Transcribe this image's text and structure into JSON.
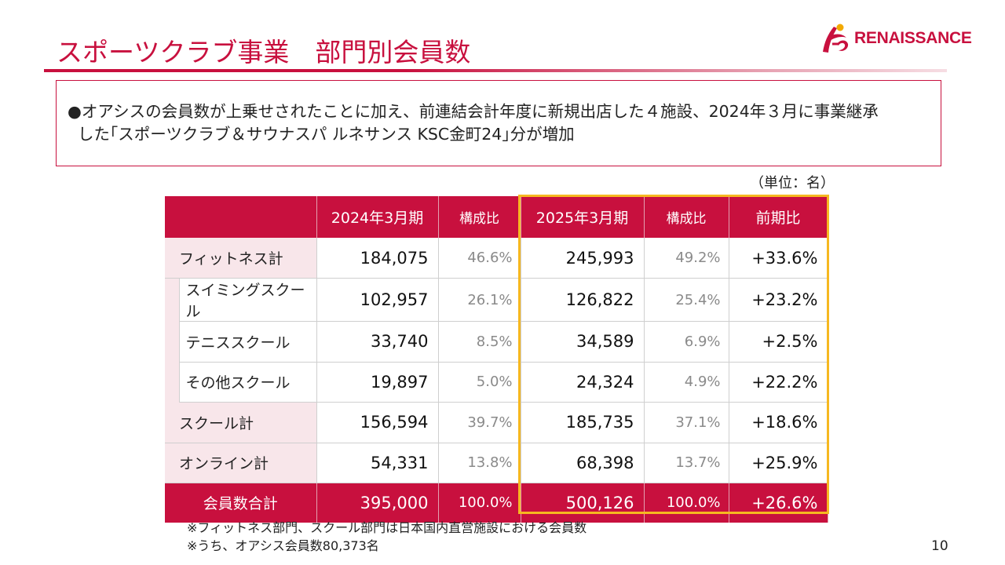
{
  "header": {
    "title": "スポーツクラブ事業　部門別会員数",
    "logo_text": "RENAISSANCE",
    "brand_color": "#c8103e"
  },
  "summary": {
    "line1": "●オアシスの会員数が上乗せされたことに加え、前連結会計年度に新規出店した４施設、2024年３月に事業継承",
    "line2": "した｢スポーツクラブ＆サウナスパ ルネサンス KSC金町24｣分が増加"
  },
  "unit_label": "（単位：名）",
  "table": {
    "headers": [
      "2024年3月期",
      "構成比",
      "2025年3月期",
      "構成比",
      "前期比"
    ],
    "rows": [
      {
        "label": "フィットネス計",
        "v2024": "184,075",
        "r2024": "46.6%",
        "v2025": "245,993",
        "r2025": "49.2%",
        "change": "+33.6%"
      },
      {
        "label": "スイミングスクール",
        "v2024": "102,957",
        "r2024": "26.1%",
        "v2025": "126,822",
        "r2025": "25.4%",
        "change": "+23.2%"
      },
      {
        "label": "テニススクール",
        "v2024": "33,740",
        "r2024": "8.5%",
        "v2025": "34,589",
        "r2025": "6.9%",
        "change": "+2.5%"
      },
      {
        "label": "その他スクール",
        "v2024": "19,897",
        "r2024": "5.0%",
        "v2025": "24,324",
        "r2025": "4.9%",
        "change": "+22.2%"
      },
      {
        "label": "スクール計",
        "v2024": "156,594",
        "r2024": "39.7%",
        "v2025": "185,735",
        "r2025": "37.1%",
        "change": "+18.6%"
      },
      {
        "label": "オンライン計",
        "v2024": "54,331",
        "r2024": "13.8%",
        "v2025": "68,398",
        "r2025": "13.7%",
        "change": "+25.9%"
      }
    ],
    "total": {
      "label": "会員数合計",
      "v2024": "395,000",
      "r2024": "100.0%",
      "v2025": "500,126",
      "r2025": "100.0%",
      "change": "+26.6%"
    }
  },
  "notes": [
    "※フィットネス部門、スクール部門は日本国内直営施設における会員数",
    "※うち、オアシス会員数80,373名"
  ],
  "page_number": "10"
}
